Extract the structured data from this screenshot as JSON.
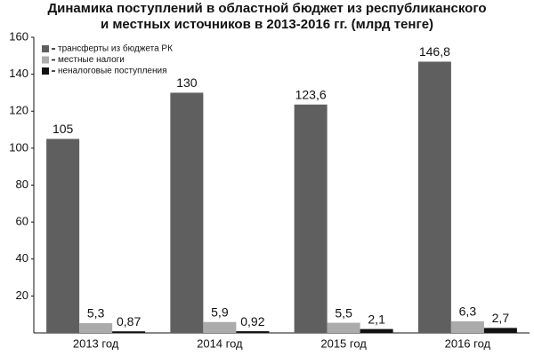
{
  "chart_data": {
    "type": "bar",
    "title": [
      "Динамика поступлений в областной бюджет из республиканского",
      "и местных источников в 2013-2016 гг. (млрд тенге)"
    ],
    "categories": [
      "2013 год",
      "2014 год",
      "2015 год",
      "2016 год"
    ],
    "series": [
      {
        "name": "трансферты из бюджета РК",
        "color": "#5f5f5f",
        "values": [
          105,
          130,
          123.6,
          146.8
        ],
        "value_labels": [
          "105",
          "130",
          "123,6",
          "146,8"
        ]
      },
      {
        "name": "местные налоги",
        "color": "#ababab",
        "values": [
          5.3,
          5.9,
          5.5,
          6.3
        ],
        "value_labels": [
          "5,3",
          "5,9",
          "5,5",
          "6,3"
        ]
      },
      {
        "name": "неналоговые поступления",
        "color": "#111111",
        "values": [
          0.87,
          0.92,
          2.1,
          2.7
        ],
        "value_labels": [
          "0,87",
          "0,92",
          "2,1",
          "2,7"
        ]
      }
    ],
    "ylim": [
      0,
      160
    ],
    "yticks": [
      20,
      40,
      60,
      80,
      100,
      120,
      140,
      160
    ],
    "legend": "top-left"
  }
}
